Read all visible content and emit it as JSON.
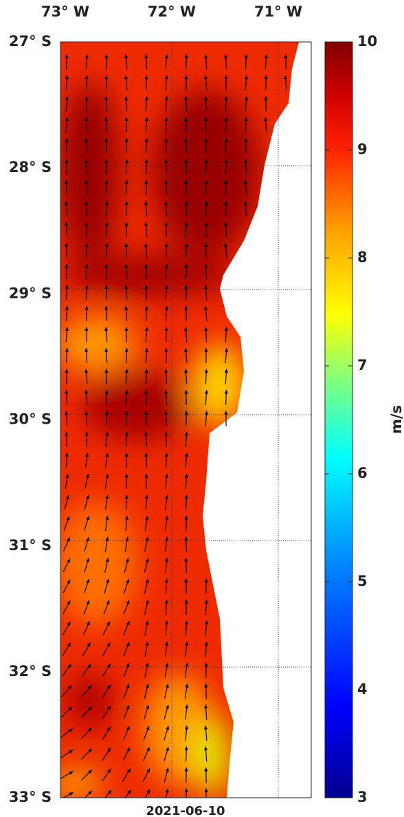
{
  "map": {
    "lon_labels": [
      "73° W",
      "72° W",
      "71° W"
    ],
    "lat_labels": [
      "27° S",
      "28° S",
      "29° S",
      "30° S",
      "31° S",
      "32° S",
      "33° S"
    ],
    "date": "2021-06-10",
    "colorbar": {
      "label": "m/s",
      "lim": [
        3,
        10
      ],
      "ticks": [
        3,
        4,
        5,
        6,
        7,
        8,
        9,
        10
      ]
    }
  }
}
